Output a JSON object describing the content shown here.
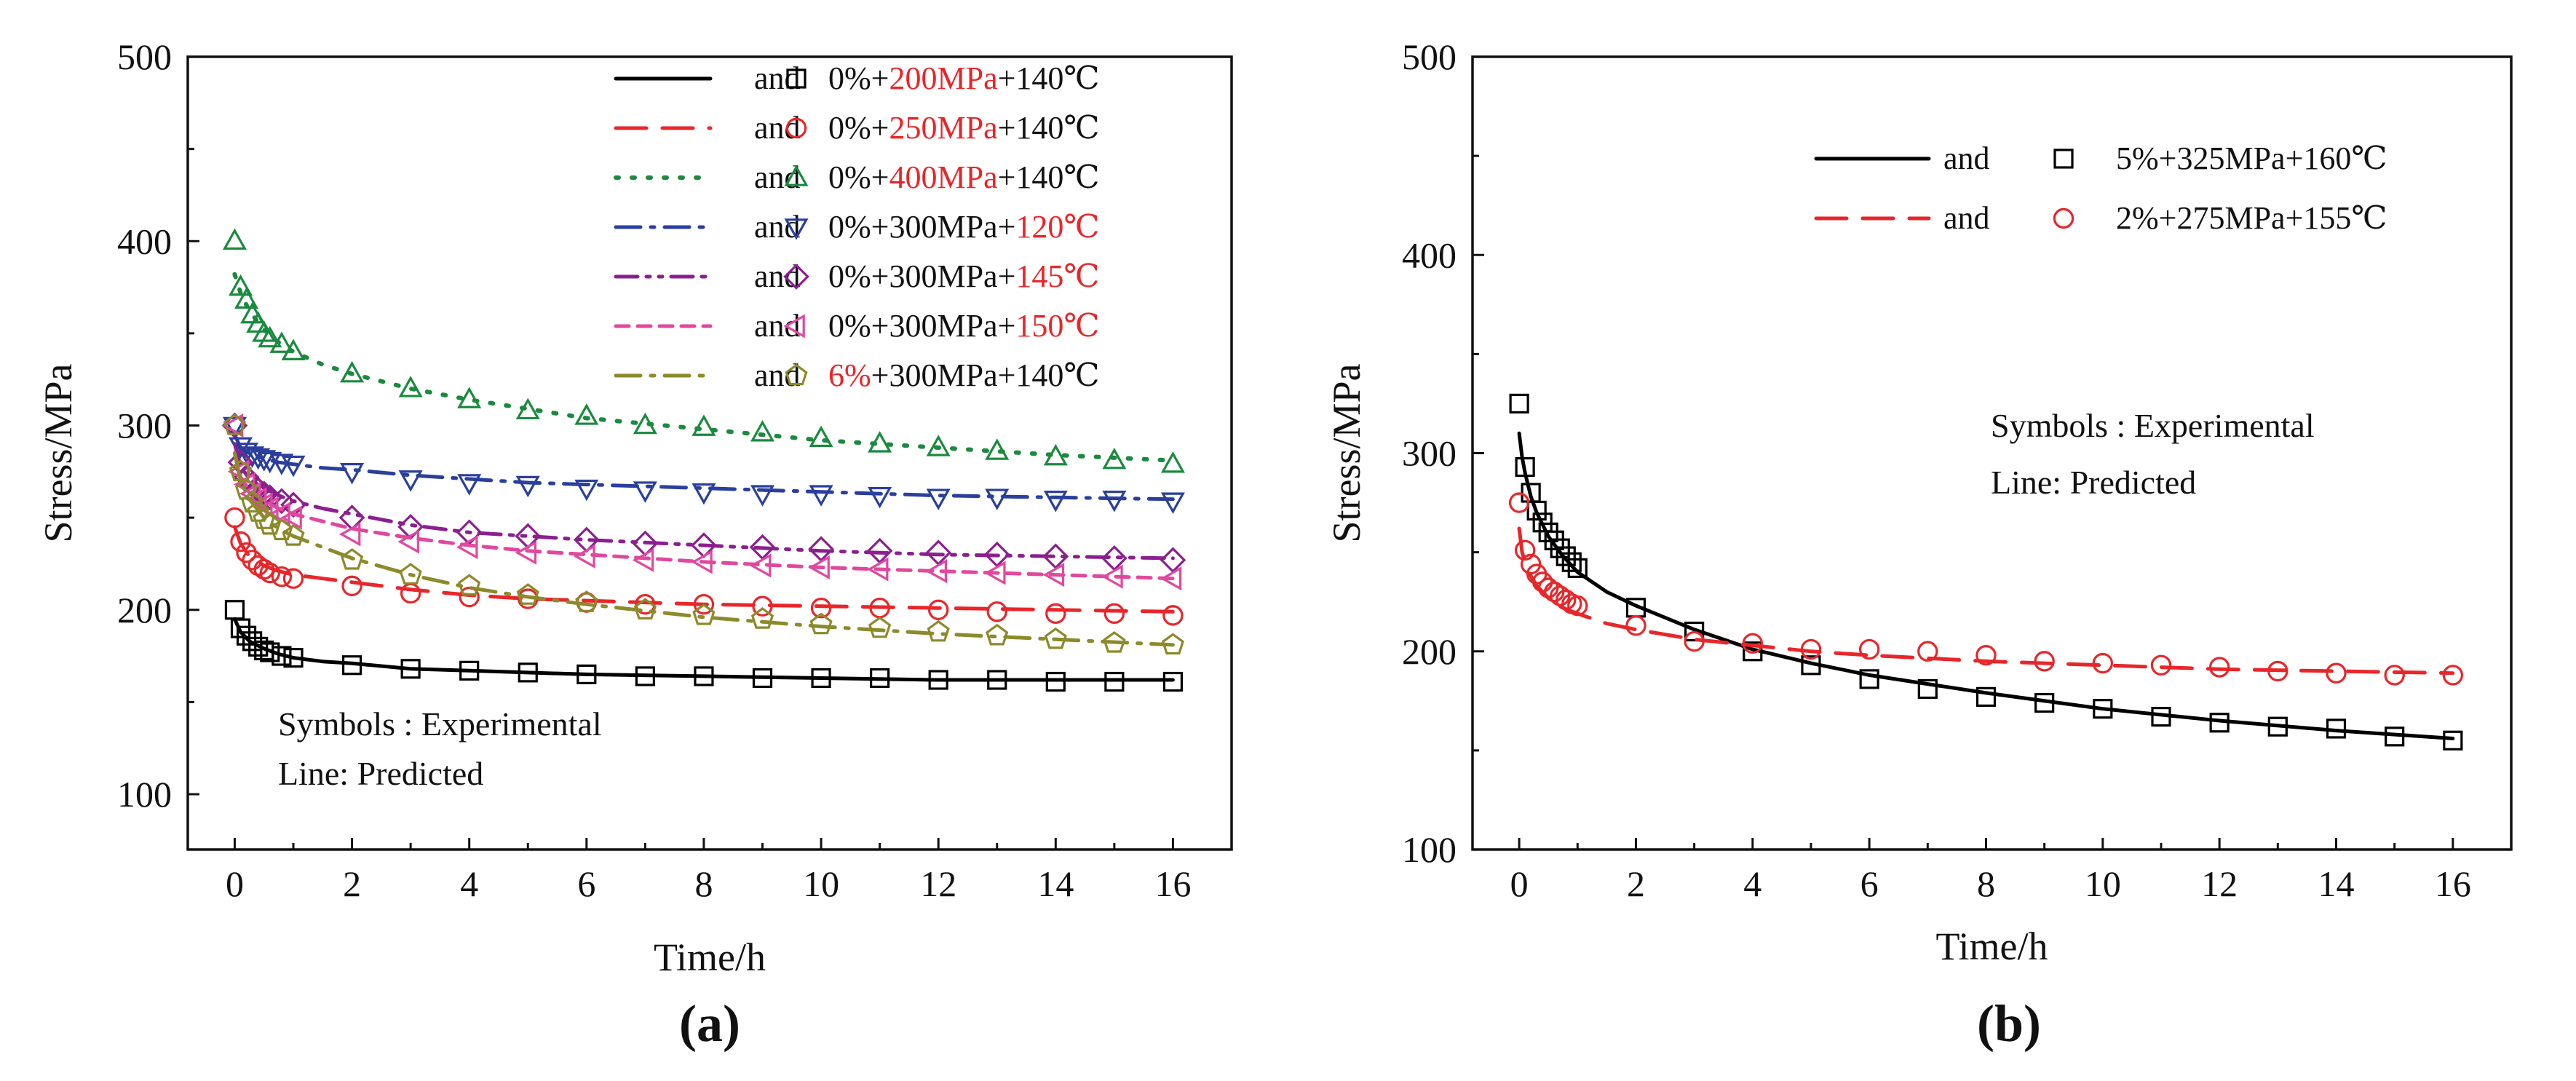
{
  "chart_data": [
    {
      "type": "line",
      "panel_label": "(a)",
      "xlabel": "Time/h",
      "ylabel": "Stress/MPa",
      "xlim": [
        -0.8,
        17
      ],
      "ylim": [
        70,
        500
      ],
      "xticks": [
        0,
        2,
        4,
        6,
        8,
        10,
        12,
        14,
        16
      ],
      "yticks": [
        100,
        200,
        300,
        400,
        500
      ],
      "legend_placement": "top-right",
      "annotation": [
        "Symbols : Experimental",
        "Line: Predicted"
      ],
      "series": [
        {
          "name": "0%+200MPa+140℃",
          "legend_parts": [
            {
              "text": "0%+",
              "color": "#111111"
            },
            {
              "text": "200MPa",
              "color": "#e8262a"
            },
            {
              "text": "+140℃",
              "color": "#111111"
            }
          ],
          "color": "#000000",
          "dash": "solid",
          "marker": "square",
          "exp_x": [
            0,
            0.1,
            0.2,
            0.3,
            0.4,
            0.5,
            0.6,
            0.8,
            1,
            2,
            3,
            4,
            5,
            6,
            7,
            8,
            9,
            10,
            11,
            12,
            13,
            14,
            15,
            16
          ],
          "exp_y": [
            200,
            190,
            186,
            183,
            180,
            178,
            177,
            175,
            174,
            170,
            168,
            167,
            166,
            165,
            164,
            164,
            163,
            163,
            163,
            162,
            162,
            161,
            161,
            161
          ],
          "pred_x": [
            0,
            0.1,
            0.25,
            0.5,
            0.75,
            1,
            1.5,
            2,
            3,
            4,
            5,
            6,
            8,
            10,
            12,
            14,
            16
          ],
          "pred_y": [
            195,
            188,
            183,
            179,
            176,
            174,
            172,
            171,
            168,
            167,
            166,
            165,
            164,
            163,
            162,
            162,
            162
          ]
        },
        {
          "name": "0%+250MPa+140℃",
          "legend_parts": [
            {
              "text": "0%+",
              "color": "#111111"
            },
            {
              "text": "250MPa",
              "color": "#e8262a"
            },
            {
              "text": "+140℃",
              "color": "#111111"
            }
          ],
          "color": "#e8262a",
          "dash": "longdash",
          "marker": "circle",
          "exp_x": [
            0,
            0.1,
            0.2,
            0.3,
            0.4,
            0.5,
            0.6,
            0.8,
            1,
            2,
            3,
            4,
            5,
            6,
            7,
            8,
            9,
            10,
            11,
            12,
            13,
            14,
            15,
            16
          ],
          "exp_y": [
            250,
            237,
            231,
            227,
            224,
            222,
            220,
            218,
            217,
            213,
            209,
            207,
            206,
            204,
            203,
            203,
            202,
            201,
            201,
            200,
            199,
            198,
            198,
            197
          ],
          "pred_x": [
            0,
            0.1,
            0.25,
            0.5,
            0.75,
            1,
            1.5,
            2,
            3,
            4,
            5,
            6,
            8,
            10,
            12,
            14,
            16
          ],
          "pred_y": [
            245,
            236,
            229,
            224,
            221,
            219,
            217,
            215,
            211,
            208,
            206,
            205,
            203,
            202,
            201,
            200,
            199
          ]
        },
        {
          "name": "0%+400MPa+140℃",
          "legend_parts": [
            {
              "text": "0%+",
              "color": "#111111"
            },
            {
              "text": "400MPa",
              "color": "#e8262a"
            },
            {
              "text": "+140℃",
              "color": "#111111"
            }
          ],
          "color": "#1a8a3e",
          "dash": "dotted",
          "marker": "triangle-up",
          "exp_x": [
            0,
            0.1,
            0.2,
            0.3,
            0.4,
            0.5,
            0.6,
            0.8,
            1,
            2,
            3,
            4,
            5,
            6,
            7,
            8,
            9,
            10,
            11,
            12,
            13,
            14,
            15,
            16
          ],
          "exp_y": [
            400,
            375,
            368,
            360,
            355,
            350,
            347,
            344,
            340,
            328,
            320,
            314,
            308,
            305,
            300,
            299,
            296,
            293,
            290,
            288,
            286,
            283,
            281,
            279
          ],
          "pred_x": [
            0,
            0.1,
            0.25,
            0.5,
            0.75,
            1,
            1.5,
            2,
            3,
            4,
            5,
            6,
            8,
            10,
            12,
            14,
            16
          ],
          "pred_y": [
            382,
            372,
            362,
            352,
            345,
            340,
            333,
            328,
            320,
            314,
            309,
            304,
            298,
            292,
            288,
            284,
            281
          ]
        },
        {
          "name": "0%+300MPa+120℃",
          "legend_parts": [
            {
              "text": "0%+300MPa+",
              "color": "#111111"
            },
            {
              "text": "120℃",
              "color": "#e8262a"
            }
          ],
          "color": "#2a3f9d",
          "dash": "dashdot",
          "marker": "triangle-down",
          "exp_x": [
            0,
            0.1,
            0.2,
            0.3,
            0.4,
            0.5,
            0.6,
            0.8,
            1,
            2,
            3,
            4,
            5,
            6,
            7,
            8,
            9,
            10,
            11,
            12,
            13,
            14,
            15,
            16
          ],
          "exp_y": [
            300,
            289,
            286,
            284,
            283,
            282,
            281,
            280,
            279,
            275,
            271,
            269,
            268,
            266,
            265,
            264,
            263,
            263,
            262,
            261,
            261,
            260,
            260,
            259
          ],
          "pred_x": [
            0,
            0.1,
            0.25,
            0.5,
            0.75,
            1,
            1.5,
            2,
            3,
            4,
            5,
            6,
            8,
            10,
            12,
            14,
            16
          ],
          "pred_y": [
            295,
            288,
            285,
            282,
            280,
            279,
            277,
            276,
            273,
            271,
            269,
            268,
            266,
            264,
            262,
            261,
            260
          ]
        },
        {
          "name": "0%+300MPa+145℃",
          "legend_parts": [
            {
              "text": "0%+300MPa+",
              "color": "#111111"
            },
            {
              "text": "145℃",
              "color": "#e8262a"
            }
          ],
          "color": "#8b1f8f",
          "dash": "dashdotdot",
          "marker": "diamond",
          "exp_x": [
            0,
            0.1,
            0.2,
            0.3,
            0.4,
            0.5,
            0.6,
            0.8,
            1,
            2,
            3,
            4,
            5,
            6,
            7,
            8,
            9,
            10,
            11,
            12,
            13,
            14,
            15,
            16
          ],
          "exp_y": [
            300,
            280,
            272,
            268,
            265,
            263,
            261,
            259,
            257,
            250,
            245,
            242,
            240,
            238,
            236,
            235,
            234,
            233,
            232,
            231,
            230,
            229,
            228,
            227
          ],
          "pred_x": [
            0,
            0.1,
            0.25,
            0.5,
            0.75,
            1,
            1.5,
            2,
            3,
            4,
            5,
            6,
            8,
            10,
            12,
            14,
            16
          ],
          "pred_y": [
            290,
            278,
            271,
            266,
            262,
            259,
            255,
            252,
            246,
            242,
            240,
            238,
            235,
            232,
            230,
            229,
            228
          ]
        },
        {
          "name": "0%+300MPa+150℃",
          "legend_parts": [
            {
              "text": "0%+300MPa+",
              "color": "#111111"
            },
            {
              "text": "150℃",
              "color": "#e8262a"
            }
          ],
          "color": "#e0489e",
          "dash": "shortdash",
          "marker": "triangle-left",
          "exp_x": [
            0,
            0.1,
            0.2,
            0.3,
            0.4,
            0.5,
            0.6,
            0.8,
            1,
            2,
            3,
            4,
            5,
            6,
            7,
            8,
            9,
            10,
            11,
            12,
            13,
            14,
            15,
            16
          ],
          "exp_y": [
            300,
            275,
            268,
            263,
            260,
            257,
            255,
            252,
            250,
            241,
            237,
            234,
            231,
            229,
            227,
            226,
            224,
            223,
            222,
            221,
            220,
            219,
            218,
            217
          ],
          "pred_x": [
            0,
            0.1,
            0.25,
            0.5,
            0.75,
            1,
            1.5,
            2,
            3,
            4,
            5,
            6,
            8,
            10,
            12,
            14,
            16
          ],
          "pred_y": [
            285,
            272,
            265,
            259,
            255,
            252,
            248,
            244,
            239,
            235,
            232,
            230,
            226,
            223,
            221,
            219,
            217
          ]
        },
        {
          "name": "6%+300MPa+140℃",
          "legend_parts": [
            {
              "text": "6%",
              "color": "#e8262a"
            },
            {
              "text": "+300MPa+140℃",
              "color": "#111111"
            }
          ],
          "color": "#8c8a2a",
          "dash": "dashdot",
          "marker": "pentagon",
          "exp_x": [
            0,
            0.1,
            0.2,
            0.3,
            0.4,
            0.5,
            0.6,
            0.8,
            1,
            2,
            3,
            4,
            5,
            6,
            7,
            8,
            9,
            10,
            11,
            12,
            13,
            14,
            15,
            16
          ],
          "exp_y": [
            300,
            275,
            265,
            258,
            253,
            249,
            246,
            243,
            240,
            227,
            219,
            213,
            208,
            204,
            200,
            197,
            195,
            192,
            190,
            188,
            186,
            184,
            182,
            181
          ],
          "pred_x": [
            0,
            0.1,
            0.25,
            0.5,
            0.75,
            1,
            1.5,
            2,
            3,
            4,
            5,
            6,
            8,
            10,
            12,
            14,
            16
          ],
          "pred_y": [
            285,
            270,
            260,
            250,
            244,
            240,
            234,
            228,
            219,
            212,
            207,
            203,
            196,
            191,
            187,
            184,
            181
          ]
        }
      ]
    },
    {
      "type": "line",
      "panel_label": "(b)",
      "xlabel": "Time/h",
      "ylabel": "Stress/MPa",
      "xlim": [
        -0.8,
        17
      ],
      "ylim": [
        100,
        500
      ],
      "xticks": [
        0,
        2,
        4,
        6,
        8,
        10,
        12,
        14,
        16
      ],
      "yticks": [
        100,
        200,
        300,
        400,
        500
      ],
      "legend_placement": "top-right",
      "annotation": [
        "Symbols : Experimental",
        "Line: Predicted"
      ],
      "series": [
        {
          "name": "5%+325MPa+160℃",
          "legend_parts": [
            {
              "text": "5%+325MPa+160℃",
              "color": "#111111"
            }
          ],
          "color": "#000000",
          "dash": "solid",
          "marker": "square",
          "exp_x": [
            0,
            0.1,
            0.2,
            0.3,
            0.4,
            0.5,
            0.6,
            0.7,
            0.8,
            0.9,
            1,
            2,
            3,
            4,
            5,
            6,
            7,
            8,
            9,
            10,
            11,
            12,
            13,
            14,
            15,
            16
          ],
          "exp_y": [
            325,
            293,
            280,
            271,
            265,
            260,
            256,
            252,
            248,
            245,
            242,
            222,
            210,
            200,
            193,
            186,
            181,
            177,
            174,
            171,
            167,
            164,
            162,
            161,
            157,
            155
          ],
          "pred_x": [
            0,
            0.05,
            0.1,
            0.2,
            0.3,
            0.5,
            0.75,
            1,
            1.5,
            2,
            3,
            4,
            5,
            6,
            8,
            10,
            12,
            14,
            16
          ],
          "pred_y": [
            310,
            298,
            290,
            278,
            270,
            258,
            248,
            240,
            230,
            223,
            211,
            201,
            194,
            188,
            179,
            171,
            165,
            160,
            156
          ]
        },
        {
          "name": "2%+275MPa+155℃",
          "legend_parts": [
            {
              "text": "2%+275MPa+155℃",
              "color": "#111111"
            }
          ],
          "color": "#e8262a",
          "dash": "longdash",
          "marker": "circle",
          "exp_x": [
            0,
            0.1,
            0.2,
            0.3,
            0.4,
            0.5,
            0.6,
            0.7,
            0.8,
            0.9,
            1,
            2,
            3,
            4,
            5,
            6,
            7,
            8,
            9,
            10,
            11,
            12,
            13,
            14,
            15,
            16
          ],
          "exp_y": [
            275,
            251,
            244,
            239,
            235,
            232,
            230,
            228,
            226,
            224,
            223,
            213,
            205,
            204,
            201,
            201,
            200,
            198,
            195,
            194,
            193,
            192,
            190,
            189,
            188,
            188
          ],
          "pred_x": [
            0,
            0.05,
            0.1,
            0.2,
            0.3,
            0.5,
            0.75,
            1,
            1.5,
            2,
            3,
            4,
            5,
            6,
            8,
            10,
            12,
            14,
            16
          ],
          "pred_y": [
            262,
            250,
            245,
            238,
            233,
            227,
            222,
            219,
            214,
            211,
            206,
            203,
            200,
            198,
            195,
            193,
            191,
            190,
            189
          ]
        }
      ]
    }
  ]
}
